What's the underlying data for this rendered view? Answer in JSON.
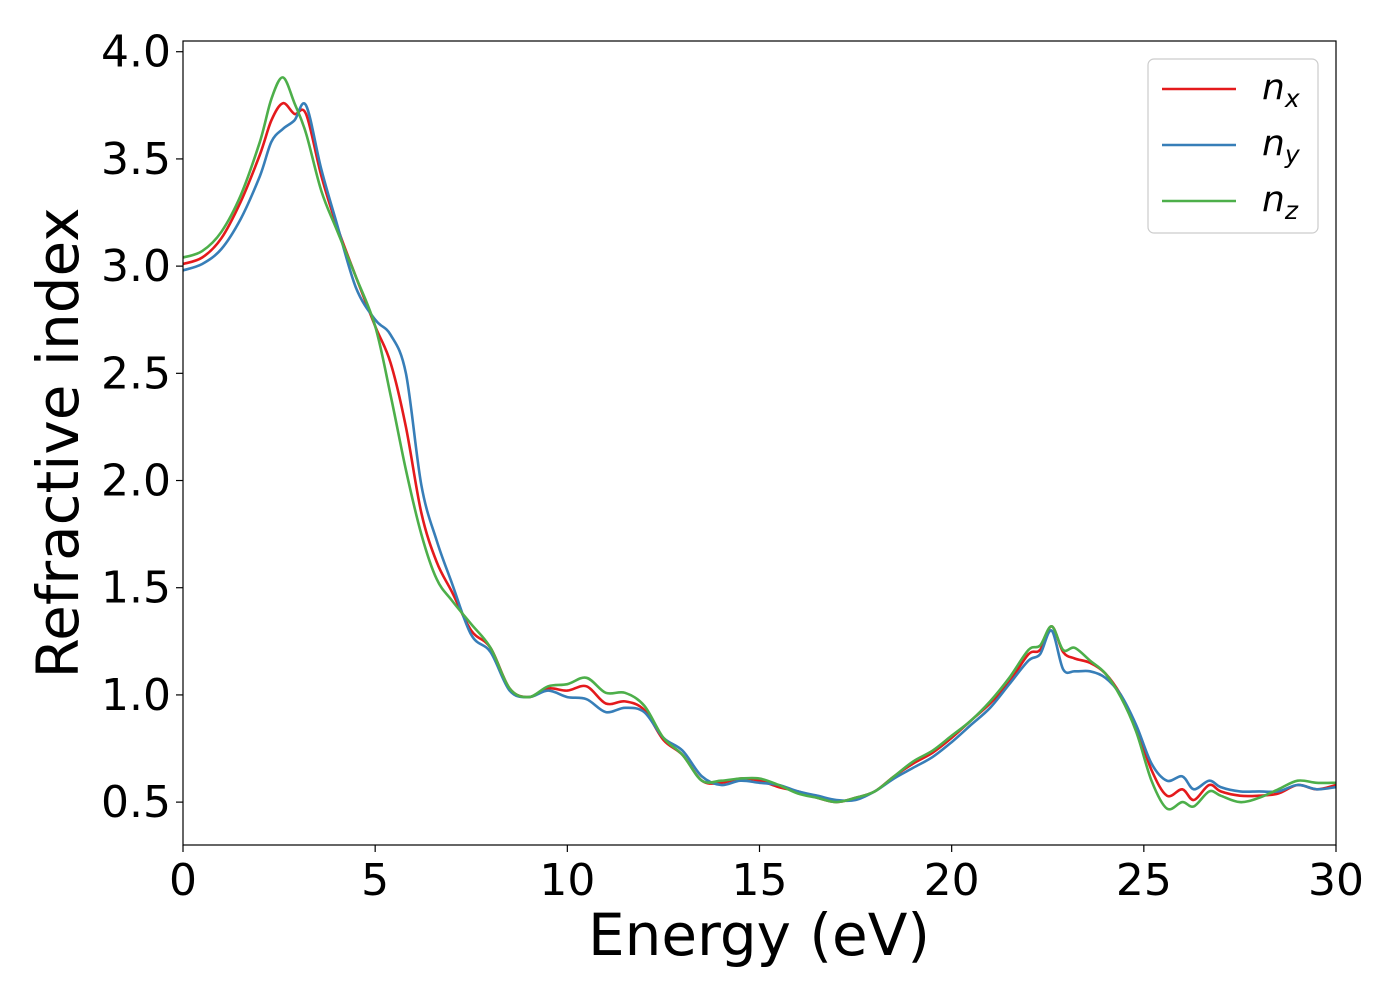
{
  "chart_data": {
    "type": "line",
    "title": "",
    "xlabel": "Energy (eV)",
    "ylabel": "Refractive index",
    "xlim": [
      0,
      30
    ],
    "ylim": [
      0.3,
      4.05
    ],
    "xticks": [
      "0",
      "5",
      "10",
      "15",
      "20",
      "25",
      "30"
    ],
    "yticks": [
      "0.5",
      "1.0",
      "1.5",
      "2.0",
      "2.5",
      "3.0",
      "3.5",
      "4.0"
    ],
    "grid": false,
    "legend_position": "top-right",
    "x": [
      0,
      0.5,
      1,
      1.5,
      2,
      2.3,
      2.6,
      2.9,
      3.2,
      3.6,
      4,
      4.5,
      5,
      5.4,
      5.8,
      6.2,
      6.6,
      7,
      7.5,
      8,
      8.5,
      9,
      9.5,
      10,
      10.5,
      11,
      11.5,
      12,
      12.5,
      13,
      13.5,
      14,
      14.5,
      15,
      15.5,
      16,
      16.5,
      17,
      17.5,
      18,
      18.5,
      19,
      19.5,
      20,
      20.5,
      21,
      21.5,
      22,
      22.3,
      22.6,
      22.9,
      23.2,
      23.6,
      24,
      24.4,
      24.8,
      25.2,
      25.6,
      26,
      26.3,
      26.7,
      27,
      27.5,
      28,
      28.5,
      29,
      29.5,
      30
    ],
    "series": [
      {
        "name": "n_x",
        "color": "#e41a1c",
        "values": [
          3.01,
          3.04,
          3.13,
          3.3,
          3.52,
          3.68,
          3.76,
          3.71,
          3.71,
          3.42,
          3.19,
          2.95,
          2.72,
          2.55,
          2.25,
          1.85,
          1.62,
          1.48,
          1.3,
          1.22,
          1.03,
          0.99,
          1.03,
          1.02,
          1.04,
          0.96,
          0.97,
          0.93,
          0.79,
          0.72,
          0.6,
          0.59,
          0.61,
          0.6,
          0.57,
          0.55,
          0.52,
          0.5,
          0.52,
          0.55,
          0.62,
          0.68,
          0.73,
          0.8,
          0.88,
          0.96,
          1.06,
          1.19,
          1.21,
          1.32,
          1.2,
          1.17,
          1.15,
          1.1,
          1.0,
          0.85,
          0.65,
          0.53,
          0.56,
          0.51,
          0.58,
          0.55,
          0.53,
          0.53,
          0.54,
          0.58,
          0.56,
          0.58
        ]
      },
      {
        "name": "n_y",
        "color": "#377eb8",
        "values": [
          2.98,
          3.01,
          3.08,
          3.22,
          3.42,
          3.58,
          3.64,
          3.68,
          3.75,
          3.45,
          3.2,
          2.9,
          2.75,
          2.68,
          2.5,
          1.98,
          1.72,
          1.52,
          1.28,
          1.2,
          1.02,
          0.99,
          1.02,
          0.99,
          0.98,
          0.92,
          0.94,
          0.92,
          0.8,
          0.74,
          0.62,
          0.58,
          0.6,
          0.59,
          0.58,
          0.55,
          0.53,
          0.51,
          0.51,
          0.55,
          0.61,
          0.66,
          0.71,
          0.78,
          0.86,
          0.94,
          1.05,
          1.16,
          1.19,
          1.3,
          1.12,
          1.11,
          1.11,
          1.08,
          1.0,
          0.86,
          0.68,
          0.6,
          0.62,
          0.56,
          0.6,
          0.57,
          0.55,
          0.55,
          0.55,
          0.58,
          0.56,
          0.57
        ]
      },
      {
        "name": "n_z",
        "color": "#4daf4a",
        "values": [
          3.04,
          3.07,
          3.16,
          3.33,
          3.58,
          3.78,
          3.88,
          3.76,
          3.62,
          3.35,
          3.17,
          2.95,
          2.72,
          2.4,
          2.05,
          1.75,
          1.54,
          1.44,
          1.33,
          1.22,
          1.03,
          0.99,
          1.04,
          1.05,
          1.08,
          1.01,
          1.01,
          0.95,
          0.8,
          0.72,
          0.6,
          0.6,
          0.61,
          0.61,
          0.58,
          0.54,
          0.52,
          0.5,
          0.52,
          0.55,
          0.62,
          0.69,
          0.74,
          0.81,
          0.88,
          0.97,
          1.08,
          1.21,
          1.23,
          1.32,
          1.21,
          1.22,
          1.16,
          1.1,
          0.99,
          0.83,
          0.6,
          0.47,
          0.5,
          0.48,
          0.55,
          0.53,
          0.5,
          0.52,
          0.56,
          0.6,
          0.59,
          0.59
        ]
      }
    ]
  },
  "legend": [
    {
      "base": "n",
      "sub": "x"
    },
    {
      "base": "n",
      "sub": "y"
    },
    {
      "base": "n",
      "sub": "z"
    }
  ]
}
